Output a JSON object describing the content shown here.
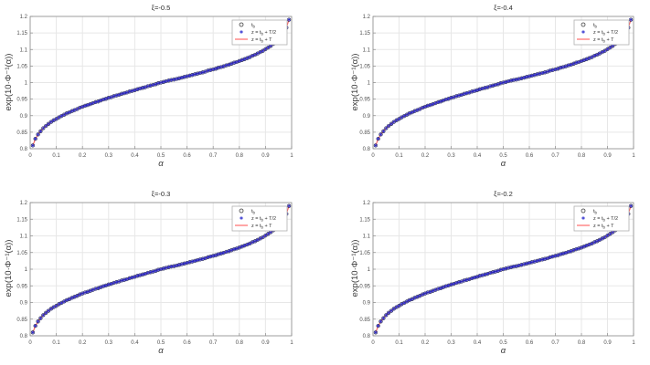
{
  "window": {
    "background": "#ffffff"
  },
  "colors": {
    "circle_marker": "#3c3c3c",
    "asterisk_marker": "#2424cc",
    "line": "#ff4d4d",
    "grid": "#e7e7e7",
    "axis_box": "#8c8c8c",
    "tick_text": "#4f4f4f",
    "legend_border": "#b0b0b0",
    "legend_bg": "#ffffff"
  },
  "chart_data": [
    {
      "type": "scatter",
      "title": "ξ=-0.5",
      "xlabel": "α",
      "ylabel": "exp(10·Φ⁻¹(α))",
      "xlim": [
        0,
        1
      ],
      "ylim": [
        0.8,
        1.2
      ],
      "xtick_labels": [
        "0",
        "0.1",
        "0.2",
        "0.3",
        "0.4",
        "0.5",
        "0.6",
        "0.7",
        "0.8",
        "0.9",
        "1"
      ],
      "ytick_labels": [
        "0.8",
        "0.85",
        "0.9",
        "0.95",
        "1",
        "1.05",
        "1.1",
        "1.15",
        "1.2"
      ],
      "grid": true,
      "legend": {
        "position": "northeast",
        "entries": [
          {
            "label": "t_b",
            "marker": "circle",
            "color": "#3c3c3c"
          },
          {
            "label": "z = t_b + T/2",
            "marker": "asterisk",
            "color": "#2424cc"
          },
          {
            "label": "z = t_b + T",
            "marker": "line",
            "color": "#ff4d4d"
          }
        ]
      },
      "series_note": "all three series coincide on the same (x,y) points",
      "series": [
        {
          "name": "t_b",
          "marker": "circle",
          "color": "#3c3c3c"
        },
        {
          "name": "z = t_b + T/2",
          "marker": "asterisk",
          "color": "#2424cc"
        },
        {
          "name": "z = t_b + T",
          "marker": "line",
          "color": "#ff4d4d"
        }
      ],
      "x": [
        0.01,
        0.02,
        0.03,
        0.04,
        0.05,
        0.06,
        0.07,
        0.08,
        0.09,
        0.1,
        0.11,
        0.12,
        0.13,
        0.14,
        0.15,
        0.16,
        0.17,
        0.18,
        0.19,
        0.2,
        0.21,
        0.22,
        0.23,
        0.24,
        0.25,
        0.26,
        0.27,
        0.28,
        0.29,
        0.3,
        0.31,
        0.32,
        0.33,
        0.34,
        0.35,
        0.36,
        0.37,
        0.38,
        0.39,
        0.4,
        0.41,
        0.42,
        0.43,
        0.44,
        0.45,
        0.46,
        0.47,
        0.48,
        0.49,
        0.5,
        0.51,
        0.52,
        0.53,
        0.54,
        0.55,
        0.56,
        0.57,
        0.58,
        0.59,
        0.6,
        0.61,
        0.62,
        0.63,
        0.64,
        0.65,
        0.66,
        0.67,
        0.68,
        0.69,
        0.7,
        0.71,
        0.72,
        0.73,
        0.74,
        0.75,
        0.76,
        0.77,
        0.78,
        0.79,
        0.8,
        0.81,
        0.82,
        0.83,
        0.84,
        0.85,
        0.86,
        0.87,
        0.88,
        0.89,
        0.9,
        0.91,
        0.92,
        0.93,
        0.94,
        0.95,
        0.96,
        0.97,
        0.98,
        0.99
      ],
      "y": [
        0.81,
        0.83,
        0.843,
        0.853,
        0.862,
        0.869,
        0.875,
        0.881,
        0.886,
        0.89,
        0.895,
        0.899,
        0.903,
        0.907,
        0.91,
        0.914,
        0.917,
        0.92,
        0.924,
        0.927,
        0.93,
        0.932,
        0.935,
        0.938,
        0.941,
        0.943,
        0.946,
        0.949,
        0.951,
        0.954,
        0.956,
        0.959,
        0.961,
        0.963,
        0.966,
        0.968,
        0.97,
        0.973,
        0.975,
        0.977,
        0.98,
        0.982,
        0.984,
        0.986,
        0.989,
        0.991,
        0.993,
        0.995,
        0.998,
        1.0,
        1.002,
        1.004,
        1.006,
        1.008,
        1.009,
        1.011,
        1.013,
        1.015,
        1.017,
        1.019,
        1.021,
        1.023,
        1.025,
        1.027,
        1.029,
        1.031,
        1.033,
        1.036,
        1.038,
        1.04,
        1.042,
        1.045,
        1.047,
        1.049,
        1.052,
        1.054,
        1.057,
        1.06,
        1.062,
        1.065,
        1.068,
        1.071,
        1.074,
        1.077,
        1.081,
        1.084,
        1.088,
        1.092,
        1.096,
        1.101,
        1.106,
        1.111,
        1.117,
        1.123,
        1.131,
        1.14,
        1.151,
        1.166,
        1.19
      ]
    },
    {
      "type": "scatter",
      "title": "ξ=-0.4",
      "xlabel": "α",
      "ylabel": "exp(10·Φ⁻¹(α))",
      "xlim": [
        0,
        1
      ],
      "ylim": [
        0.8,
        1.2
      ],
      "xtick_labels": [
        "0",
        "0.1",
        "0.2",
        "0.3",
        "0.4",
        "0.5",
        "0.6",
        "0.7",
        "0.8",
        "0.9",
        "1"
      ],
      "ytick_labels": [
        "0.8",
        "0.85",
        "0.9",
        "0.95",
        "1",
        "1.05",
        "1.1",
        "1.15",
        "1.2"
      ],
      "grid": true,
      "legend": {
        "position": "northeast",
        "entries": [
          {
            "label": "t_b",
            "marker": "circle",
            "color": "#3c3c3c"
          },
          {
            "label": "z = t_b + T/2",
            "marker": "asterisk",
            "color": "#2424cc"
          },
          {
            "label": "z = t_b + T",
            "marker": "line",
            "color": "#ff4d4d"
          }
        ]
      },
      "series_note": "all three series coincide on the same (x,y) points",
      "series": [
        {
          "name": "t_b",
          "marker": "circle",
          "color": "#3c3c3c"
        },
        {
          "name": "z = t_b + T/2",
          "marker": "asterisk",
          "color": "#2424cc"
        },
        {
          "name": "z = t_b + T",
          "marker": "line",
          "color": "#ff4d4d"
        }
      ],
      "x": [
        0.01,
        0.02,
        0.03,
        0.04,
        0.05,
        0.06,
        0.07,
        0.08,
        0.09,
        0.1,
        0.11,
        0.12,
        0.13,
        0.14,
        0.15,
        0.16,
        0.17,
        0.18,
        0.19,
        0.2,
        0.21,
        0.22,
        0.23,
        0.24,
        0.25,
        0.26,
        0.27,
        0.28,
        0.29,
        0.3,
        0.31,
        0.32,
        0.33,
        0.34,
        0.35,
        0.36,
        0.37,
        0.38,
        0.39,
        0.4,
        0.41,
        0.42,
        0.43,
        0.44,
        0.45,
        0.46,
        0.47,
        0.48,
        0.49,
        0.5,
        0.51,
        0.52,
        0.53,
        0.54,
        0.55,
        0.56,
        0.57,
        0.58,
        0.59,
        0.6,
        0.61,
        0.62,
        0.63,
        0.64,
        0.65,
        0.66,
        0.67,
        0.68,
        0.69,
        0.7,
        0.71,
        0.72,
        0.73,
        0.74,
        0.75,
        0.76,
        0.77,
        0.78,
        0.79,
        0.8,
        0.81,
        0.82,
        0.83,
        0.84,
        0.85,
        0.86,
        0.87,
        0.88,
        0.89,
        0.9,
        0.91,
        0.92,
        0.93,
        0.94,
        0.95,
        0.96,
        0.97,
        0.98,
        0.99
      ],
      "y": [
        0.81,
        0.83,
        0.843,
        0.853,
        0.862,
        0.869,
        0.875,
        0.881,
        0.886,
        0.89,
        0.895,
        0.899,
        0.903,
        0.907,
        0.91,
        0.914,
        0.917,
        0.92,
        0.924,
        0.927,
        0.93,
        0.932,
        0.935,
        0.938,
        0.941,
        0.943,
        0.946,
        0.949,
        0.951,
        0.954,
        0.956,
        0.959,
        0.961,
        0.963,
        0.966,
        0.968,
        0.97,
        0.973,
        0.975,
        0.977,
        0.98,
        0.982,
        0.984,
        0.986,
        0.989,
        0.991,
        0.993,
        0.995,
        0.998,
        1.0,
        1.002,
        1.004,
        1.006,
        1.008,
        1.009,
        1.011,
        1.013,
        1.015,
        1.017,
        1.019,
        1.021,
        1.023,
        1.025,
        1.027,
        1.029,
        1.031,
        1.033,
        1.036,
        1.038,
        1.04,
        1.042,
        1.045,
        1.047,
        1.049,
        1.052,
        1.054,
        1.057,
        1.06,
        1.062,
        1.065,
        1.068,
        1.071,
        1.074,
        1.077,
        1.081,
        1.084,
        1.088,
        1.092,
        1.096,
        1.101,
        1.106,
        1.111,
        1.117,
        1.123,
        1.131,
        1.14,
        1.151,
        1.166,
        1.19
      ]
    },
    {
      "type": "scatter",
      "title": "ξ=-0.3",
      "xlabel": "α",
      "ylabel": "exp(10·Φ⁻¹(α))",
      "xlim": [
        0,
        1
      ],
      "ylim": [
        0.8,
        1.2
      ],
      "xtick_labels": [
        "0",
        "0.1",
        "0.2",
        "0.3",
        "0.4",
        "0.5",
        "0.6",
        "0.7",
        "0.8",
        "0.9",
        "1"
      ],
      "ytick_labels": [
        "0.8",
        "0.85",
        "0.9",
        "0.95",
        "1",
        "1.05",
        "1.1",
        "1.15",
        "1.2"
      ],
      "grid": true,
      "legend": {
        "position": "northeast",
        "entries": [
          {
            "label": "t_b",
            "marker": "circle",
            "color": "#3c3c3c"
          },
          {
            "label": "z = t_b + T/2",
            "marker": "asterisk",
            "color": "#2424cc"
          },
          {
            "label": "z = t_b + T",
            "marker": "line",
            "color": "#ff4d4d"
          }
        ]
      },
      "series_note": "all three series coincide on the same (x,y) points",
      "series": [
        {
          "name": "t_b",
          "marker": "circle",
          "color": "#3c3c3c"
        },
        {
          "name": "z = t_b + T/2",
          "marker": "asterisk",
          "color": "#2424cc"
        },
        {
          "name": "z = t_b + T",
          "marker": "line",
          "color": "#ff4d4d"
        }
      ],
      "x": [
        0.01,
        0.02,
        0.03,
        0.04,
        0.05,
        0.06,
        0.07,
        0.08,
        0.09,
        0.1,
        0.11,
        0.12,
        0.13,
        0.14,
        0.15,
        0.16,
        0.17,
        0.18,
        0.19,
        0.2,
        0.21,
        0.22,
        0.23,
        0.24,
        0.25,
        0.26,
        0.27,
        0.28,
        0.29,
        0.3,
        0.31,
        0.32,
        0.33,
        0.34,
        0.35,
        0.36,
        0.37,
        0.38,
        0.39,
        0.4,
        0.41,
        0.42,
        0.43,
        0.44,
        0.45,
        0.46,
        0.47,
        0.48,
        0.49,
        0.5,
        0.51,
        0.52,
        0.53,
        0.54,
        0.55,
        0.56,
        0.57,
        0.58,
        0.59,
        0.6,
        0.61,
        0.62,
        0.63,
        0.64,
        0.65,
        0.66,
        0.67,
        0.68,
        0.69,
        0.7,
        0.71,
        0.72,
        0.73,
        0.74,
        0.75,
        0.76,
        0.77,
        0.78,
        0.79,
        0.8,
        0.81,
        0.82,
        0.83,
        0.84,
        0.85,
        0.86,
        0.87,
        0.88,
        0.89,
        0.9,
        0.91,
        0.92,
        0.93,
        0.94,
        0.95,
        0.96,
        0.97,
        0.98,
        0.99
      ],
      "y": [
        0.81,
        0.83,
        0.843,
        0.853,
        0.862,
        0.869,
        0.875,
        0.881,
        0.886,
        0.89,
        0.895,
        0.899,
        0.903,
        0.907,
        0.91,
        0.914,
        0.917,
        0.92,
        0.924,
        0.927,
        0.93,
        0.932,
        0.935,
        0.938,
        0.941,
        0.943,
        0.946,
        0.949,
        0.951,
        0.954,
        0.956,
        0.959,
        0.961,
        0.963,
        0.966,
        0.968,
        0.97,
        0.973,
        0.975,
        0.977,
        0.98,
        0.982,
        0.984,
        0.986,
        0.989,
        0.991,
        0.993,
        0.995,
        0.998,
        1.0,
        1.002,
        1.004,
        1.006,
        1.008,
        1.009,
        1.011,
        1.013,
        1.015,
        1.017,
        1.019,
        1.021,
        1.023,
        1.025,
        1.027,
        1.029,
        1.031,
        1.033,
        1.036,
        1.038,
        1.04,
        1.042,
        1.045,
        1.047,
        1.049,
        1.052,
        1.054,
        1.057,
        1.06,
        1.062,
        1.065,
        1.068,
        1.071,
        1.074,
        1.077,
        1.081,
        1.084,
        1.088,
        1.092,
        1.096,
        1.101,
        1.106,
        1.111,
        1.117,
        1.123,
        1.131,
        1.14,
        1.151,
        1.166,
        1.19
      ]
    },
    {
      "type": "scatter",
      "title": "ξ=-0.2",
      "xlabel": "α",
      "ylabel": "exp(10·Φ⁻¹(α))",
      "xlim": [
        0,
        1
      ],
      "ylim": [
        0.8,
        1.2
      ],
      "xtick_labels": [
        "0",
        "0.1",
        "0.2",
        "0.3",
        "0.4",
        "0.5",
        "0.6",
        "0.7",
        "0.8",
        "0.9",
        "1"
      ],
      "ytick_labels": [
        "0.8",
        "0.85",
        "0.9",
        "0.95",
        "1",
        "1.05",
        "1.1",
        "1.15",
        "1.2"
      ],
      "grid": true,
      "legend": {
        "position": "northeast",
        "entries": [
          {
            "label": "t_b",
            "marker": "circle",
            "color": "#3c3c3c"
          },
          {
            "label": "z = t_b + T/2",
            "marker": "asterisk",
            "color": "#2424cc"
          },
          {
            "label": "z = t_b + T",
            "marker": "line",
            "color": "#ff4d4d"
          }
        ]
      },
      "series_note": "all three series coincide on the same (x,y) points",
      "series": [
        {
          "name": "t_b",
          "marker": "circle",
          "color": "#3c3c3c"
        },
        {
          "name": "z = t_b + T/2",
          "marker": "asterisk",
          "color": "#2424cc"
        },
        {
          "name": "z = t_b + T",
          "marker": "line",
          "color": "#ff4d4d"
        }
      ],
      "x": [
        0.01,
        0.02,
        0.03,
        0.04,
        0.05,
        0.06,
        0.07,
        0.08,
        0.09,
        0.1,
        0.11,
        0.12,
        0.13,
        0.14,
        0.15,
        0.16,
        0.17,
        0.18,
        0.19,
        0.2,
        0.21,
        0.22,
        0.23,
        0.24,
        0.25,
        0.26,
        0.27,
        0.28,
        0.29,
        0.3,
        0.31,
        0.32,
        0.33,
        0.34,
        0.35,
        0.36,
        0.37,
        0.38,
        0.39,
        0.4,
        0.41,
        0.42,
        0.43,
        0.44,
        0.45,
        0.46,
        0.47,
        0.48,
        0.49,
        0.5,
        0.51,
        0.52,
        0.53,
        0.54,
        0.55,
        0.56,
        0.57,
        0.58,
        0.59,
        0.6,
        0.61,
        0.62,
        0.63,
        0.64,
        0.65,
        0.66,
        0.67,
        0.68,
        0.69,
        0.7,
        0.71,
        0.72,
        0.73,
        0.74,
        0.75,
        0.76,
        0.77,
        0.78,
        0.79,
        0.8,
        0.81,
        0.82,
        0.83,
        0.84,
        0.85,
        0.86,
        0.87,
        0.88,
        0.89,
        0.9,
        0.91,
        0.92,
        0.93,
        0.94,
        0.95,
        0.96,
        0.97,
        0.98,
        0.99
      ],
      "y": [
        0.81,
        0.83,
        0.843,
        0.853,
        0.862,
        0.869,
        0.875,
        0.881,
        0.886,
        0.89,
        0.895,
        0.899,
        0.903,
        0.907,
        0.91,
        0.914,
        0.917,
        0.92,
        0.924,
        0.927,
        0.93,
        0.932,
        0.935,
        0.938,
        0.941,
        0.943,
        0.946,
        0.949,
        0.951,
        0.954,
        0.956,
        0.959,
        0.961,
        0.963,
        0.966,
        0.968,
        0.97,
        0.973,
        0.975,
        0.977,
        0.98,
        0.982,
        0.984,
        0.986,
        0.989,
        0.991,
        0.993,
        0.995,
        0.998,
        1.0,
        1.002,
        1.004,
        1.006,
        1.008,
        1.009,
        1.011,
        1.013,
        1.015,
        1.017,
        1.019,
        1.021,
        1.023,
        1.025,
        1.027,
        1.029,
        1.031,
        1.033,
        1.036,
        1.038,
        1.04,
        1.042,
        1.045,
        1.047,
        1.049,
        1.052,
        1.054,
        1.057,
        1.06,
        1.062,
        1.065,
        1.068,
        1.071,
        1.074,
        1.077,
        1.081,
        1.084,
        1.088,
        1.092,
        1.096,
        1.101,
        1.106,
        1.111,
        1.117,
        1.123,
        1.131,
        1.14,
        1.151,
        1.166,
        1.19
      ]
    }
  ]
}
